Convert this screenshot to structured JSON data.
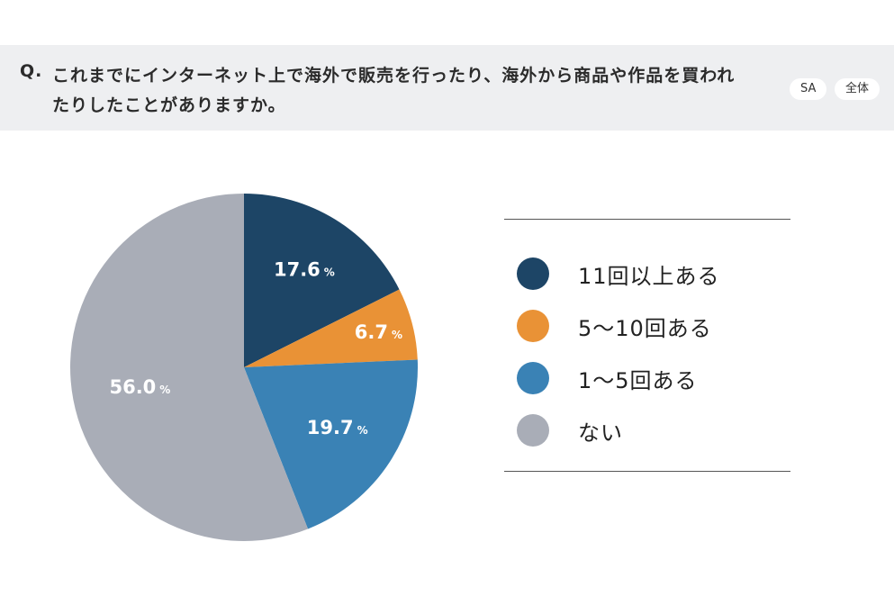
{
  "question": {
    "prefix": "Q.",
    "text": "これまでにインターネット上で海外で販売を行ったり、海外から商品や作品を買われたりしたことがありますか。",
    "tags": [
      "SA",
      "全体"
    ]
  },
  "chart_data": {
    "type": "pie",
    "categories": [
      "11回以上ある",
      "5〜10回ある",
      "1〜5回ある",
      "ない"
    ],
    "values": [
      17.6,
      6.7,
      19.7,
      56.0
    ],
    "value_labels": [
      "17.6",
      "6.7",
      "19.7",
      "56.0"
    ],
    "unit": "%",
    "colors": [
      "#1d4566",
      "#e99236",
      "#3a82b5",
      "#a9adb7"
    ],
    "start": "12 o'clock",
    "direction": "clockwise",
    "legend_position": "right"
  }
}
